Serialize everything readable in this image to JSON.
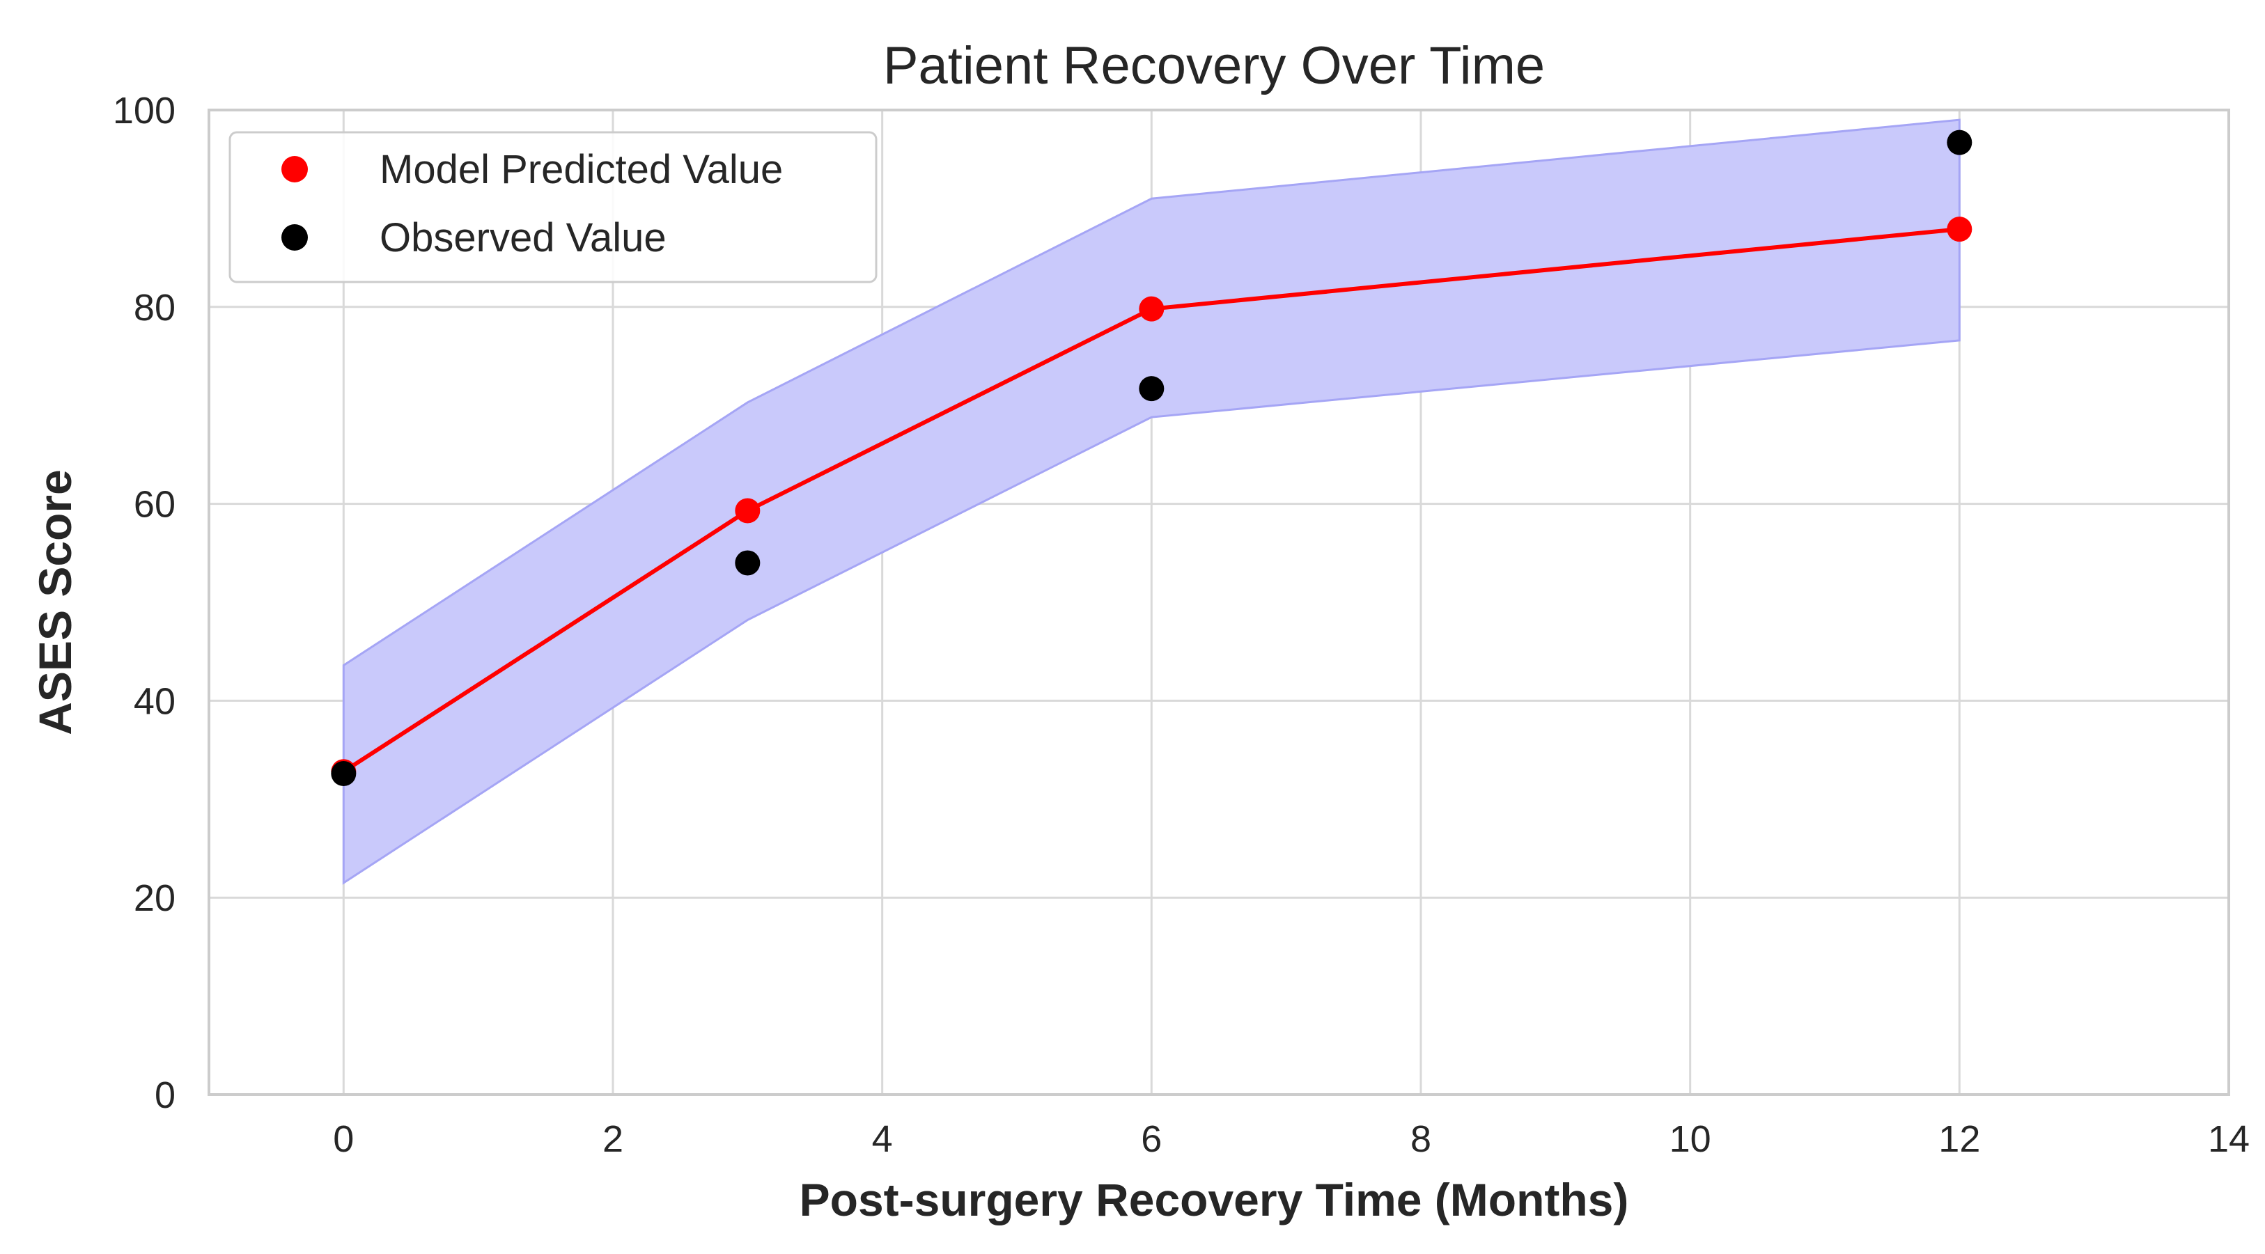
{
  "chart_data": {
    "type": "line",
    "title": "Patient Recovery Over Time",
    "xlabel": "Post-surgery Recovery Time (Months)",
    "ylabel": "ASES Score",
    "xlim": [
      -1,
      14
    ],
    "ylim": [
      0,
      100
    ],
    "xticks": [
      0,
      2,
      4,
      6,
      8,
      10,
      12,
      14
    ],
    "yticks": [
      0,
      20,
      40,
      60,
      80,
      100
    ],
    "grid": true,
    "legend_position": "upper-left",
    "x": [
      0,
      3,
      6,
      12
    ],
    "band": {
      "lower": [
        21.5,
        48.2,
        68.8,
        76.6
      ],
      "upper": [
        43.6,
        70.3,
        91.0,
        99.0
      ],
      "color": "#c9c9fb"
    },
    "series": [
      {
        "name": "Model Predicted Value",
        "values": [
          32.8,
          59.3,
          79.8,
          87.9
        ],
        "color": "#ff0000",
        "line": true
      },
      {
        "name": "Observed Value",
        "values": [
          32.6,
          54.0,
          71.7,
          96.7
        ],
        "color": "#000000",
        "line": false
      }
    ]
  }
}
